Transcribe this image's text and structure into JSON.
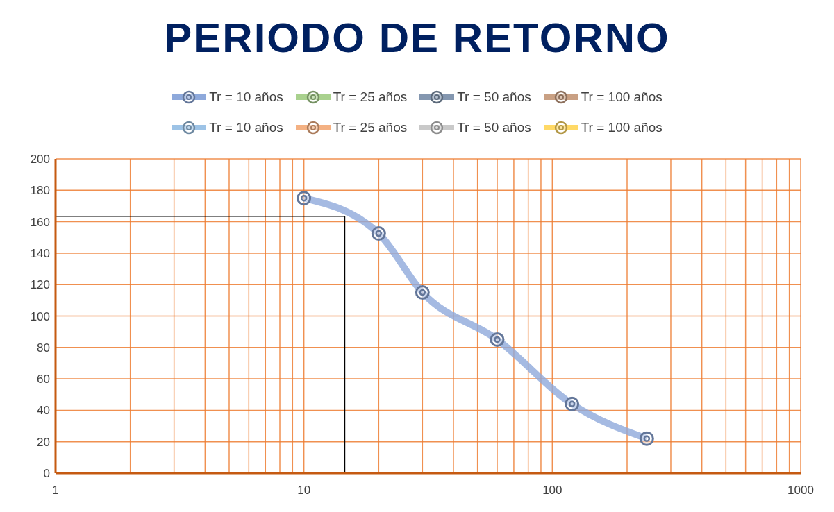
{
  "chart_data": {
    "type": "line",
    "title": "PERIODO DE RETORNO",
    "log": "x",
    "grid": true,
    "legend": "top",
    "marker": "circle",
    "line_style": "solid",
    "xlim": [
      1,
      1000
    ],
    "xticks": [
      1,
      {
        "value": 2,
        "label": null
      },
      {
        "value": 3,
        "label": null
      },
      {
        "value": 4,
        "label": null
      },
      {
        "value": 5,
        "label": null
      },
      {
        "value": 6,
        "label": null
      },
      {
        "value": 7,
        "label": null
      },
      {
        "value": 8,
        "label": null
      },
      {
        "value": 9,
        "label": null
      },
      10,
      {
        "value": 20,
        "label": null
      },
      {
        "value": 30,
        "label": null
      },
      {
        "value": 40,
        "label": null
      },
      {
        "value": 50,
        "label": null
      },
      {
        "value": 60,
        "label": null
      },
      {
        "value": 70,
        "label": null
      },
      {
        "value": 80,
        "label": null
      },
      {
        "value": 90,
        "label": null
      },
      100,
      {
        "value": 200,
        "label": null
      },
      {
        "value": 300,
        "label": null
      },
      {
        "value": 400,
        "label": null
      },
      {
        "value": 500,
        "label": null
      },
      {
        "value": 600,
        "label": null
      },
      {
        "value": 700,
        "label": null
      },
      {
        "value": 800,
        "label": null
      },
      {
        "value": 900,
        "label": null
      },
      1000
    ],
    "ylim": [
      0,
      200
    ],
    "yticks": [
      0,
      20,
      40,
      60,
      80,
      100,
      120,
      140,
      160,
      180,
      200
    ],
    "series": [
      {
        "name": "Tr = 10 años",
        "color": "#8ea9db",
        "x": [
          10,
          20,
          30,
          60,
          120,
          240
        ],
        "values": [
          175,
          152.5,
          115,
          85,
          44,
          22
        ]
      },
      {
        "name": "Tr = 25 años",
        "color": "#a9d18e"
      },
      {
        "name": "Tr = 50 años",
        "color": "#8497b0"
      },
      {
        "name": "Tr = 100 años",
        "color": "#c9a083"
      },
      {
        "name": "Tr = 10 años",
        "color": "#9dc3e6"
      },
      {
        "name": "Tr = 25 años",
        "color": "#f4b183"
      },
      {
        "name": "Tr = 50 años",
        "color": "#c9c9c9"
      },
      {
        "name": "Tr = 100 años",
        "color": "#ffd966"
      },
      {
        "color": "#000000",
        "marker": "none",
        "x": [
          1,
          14.6,
          14.6
        ],
        "values": [
          163.5,
          163.5,
          0
        ]
      }
    ]
  }
}
